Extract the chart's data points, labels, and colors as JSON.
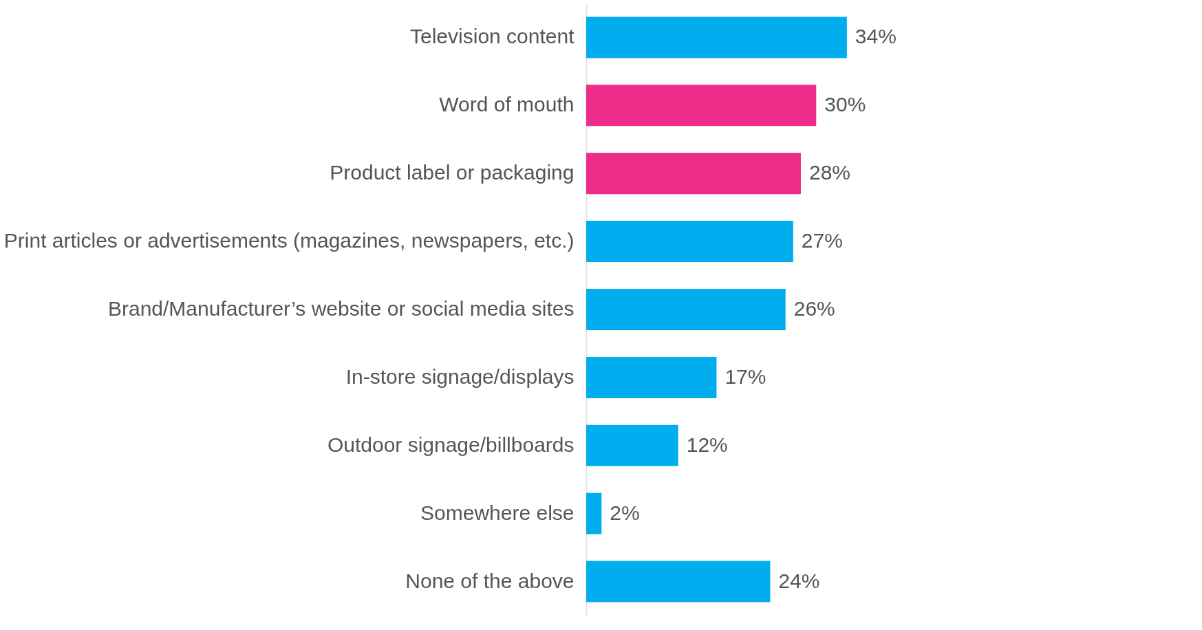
{
  "chart_data": {
    "type": "bar",
    "orientation": "horizontal",
    "data_labels": true,
    "categories": [
      "Television content",
      "Word of mouth",
      "Product label or packaging",
      "Print articles or advertisements (magazines, newspapers, etc.)",
      "Brand/Manufacturer’s website or social media sites",
      "In-store signage/displays",
      "Outdoor signage/billboards",
      "Somewhere else",
      "None of the above"
    ],
    "values": [
      34,
      30,
      28,
      27,
      26,
      17,
      12,
      2,
      24
    ],
    "value_labels": [
      "34%",
      "30%",
      "28%",
      "27%",
      "26%",
      "17%",
      "12%",
      "2%",
      "24%"
    ],
    "colors": [
      "#00aeef",
      "#ec2d8a",
      "#ec2d8a",
      "#00aeef",
      "#00aeef",
      "#00aeef",
      "#00aeef",
      "#00aeef",
      "#00aeef"
    ],
    "grid": false
  }
}
